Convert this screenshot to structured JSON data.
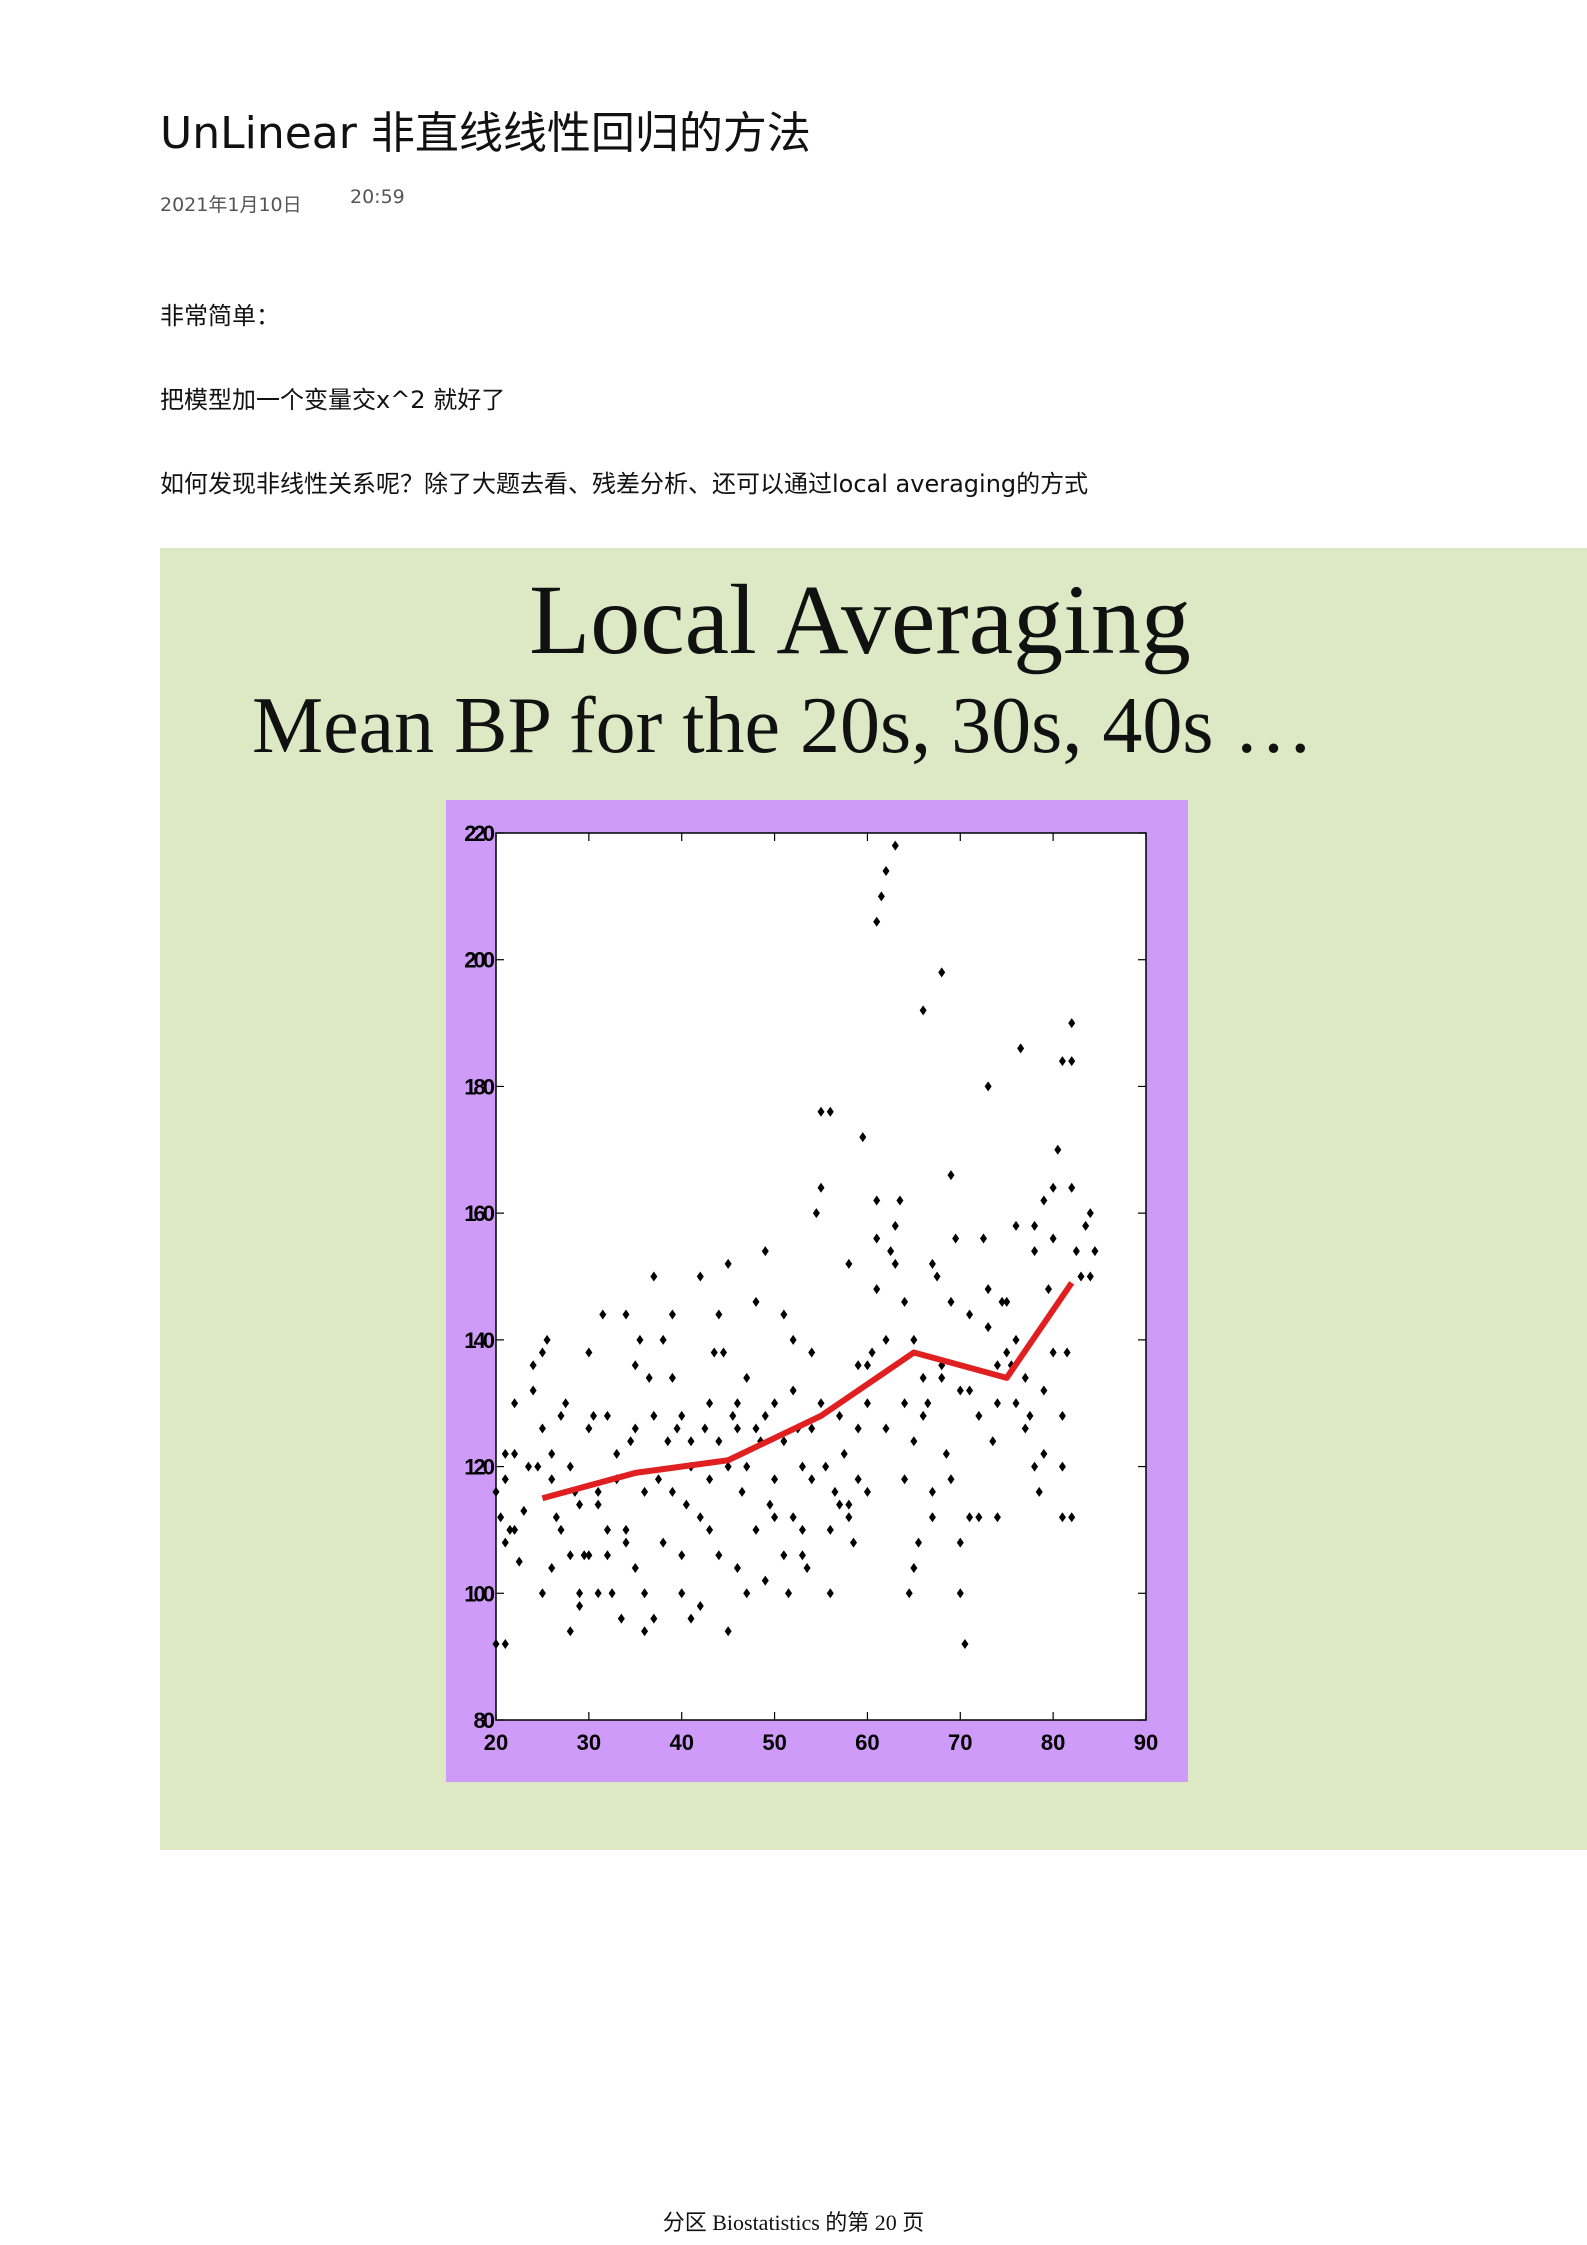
{
  "document": {
    "title": "UnLinear 非直线线性回归的方法",
    "date": "2021年1月10日",
    "time": "20:59",
    "paragraphs": [
      "非常简单：",
      "把模型加一个变量交x^2 就好了",
      "如何发现非线性关系呢？除了大题去看、残差分析、还可以通过local averaging的方式"
    ],
    "footer": "分区 Biostatistics 的第 20 页"
  },
  "colors": {
    "slide_background": "#dde9c4",
    "plot_frame": "#cf9bf9",
    "points": "#000000",
    "average_line": "#e02020"
  },
  "chart_data": {
    "type": "scatter",
    "title": "Local Averaging",
    "subtitle": "Mean BP for the 20s, 30s, 40s …",
    "xlabel": "",
    "ylabel": "",
    "xlim": [
      20,
      90
    ],
    "ylim": [
      80,
      220
    ],
    "xticks": [
      20,
      30,
      40,
      50,
      60,
      70,
      80,
      90
    ],
    "yticks": [
      80,
      100,
      120,
      140,
      160,
      180,
      200,
      220
    ],
    "grid": false,
    "points": [
      [
        20,
        92
      ],
      [
        21,
        92
      ],
      [
        20,
        116
      ],
      [
        20.5,
        112
      ],
      [
        21,
        118
      ],
      [
        21,
        108
      ],
      [
        21.5,
        110
      ],
      [
        22,
        122
      ],
      [
        21,
        122
      ],
      [
        22,
        110
      ],
      [
        22.5,
        105
      ],
      [
        23,
        113
      ],
      [
        22,
        130
      ],
      [
        23.5,
        120
      ],
      [
        24,
        136
      ],
      [
        24,
        132
      ],
      [
        24.5,
        120
      ],
      [
        25,
        138
      ],
      [
        25,
        100
      ],
      [
        25,
        126
      ],
      [
        25.5,
        140
      ],
      [
        26,
        118
      ],
      [
        26,
        104
      ],
      [
        26,
        122
      ],
      [
        26.5,
        112
      ],
      [
        27,
        110
      ],
      [
        27,
        128
      ],
      [
        27.5,
        130
      ],
      [
        28,
        94
      ],
      [
        28,
        120
      ],
      [
        28,
        106
      ],
      [
        28.5,
        116
      ],
      [
        29,
        100
      ],
      [
        29,
        98
      ],
      [
        29,
        114
      ],
      [
        29.5,
        106
      ],
      [
        30,
        138
      ],
      [
        30,
        106
      ],
      [
        30,
        126
      ],
      [
        30.5,
        128
      ],
      [
        31,
        114
      ],
      [
        31,
        116
      ],
      [
        31,
        100
      ],
      [
        31.5,
        144
      ],
      [
        32,
        106
      ],
      [
        32,
        110
      ],
      [
        32,
        128
      ],
      [
        32.5,
        100
      ],
      [
        33,
        118
      ],
      [
        33,
        122
      ],
      [
        33.5,
        96
      ],
      [
        34,
        144
      ],
      [
        34,
        110
      ],
      [
        34,
        108
      ],
      [
        34.5,
        124
      ],
      [
        35,
        126
      ],
      [
        35,
        104
      ],
      [
        35,
        136
      ],
      [
        35.5,
        140
      ],
      [
        36,
        100
      ],
      [
        36,
        116
      ],
      [
        36,
        94
      ],
      [
        36.5,
        134
      ],
      [
        37,
        128
      ],
      [
        37,
        150
      ],
      [
        37,
        96
      ],
      [
        37.5,
        118
      ],
      [
        38,
        140
      ],
      [
        38,
        108
      ],
      [
        38.5,
        124
      ],
      [
        39,
        134
      ],
      [
        39,
        144
      ],
      [
        39,
        116
      ],
      [
        39.5,
        126
      ],
      [
        40,
        128
      ],
      [
        40,
        100
      ],
      [
        40,
        106
      ],
      [
        40.5,
        114
      ],
      [
        41,
        120
      ],
      [
        41,
        96
      ],
      [
        41,
        124
      ],
      [
        42,
        150
      ],
      [
        42,
        112
      ],
      [
        42,
        98
      ],
      [
        42.5,
        126
      ],
      [
        43,
        130
      ],
      [
        43,
        110
      ],
      [
        43,
        118
      ],
      [
        43.5,
        138
      ],
      [
        44,
        106
      ],
      [
        44,
        144
      ],
      [
        44,
        124
      ],
      [
        44.5,
        138
      ],
      [
        45,
        152
      ],
      [
        45,
        94
      ],
      [
        45,
        120
      ],
      [
        45.5,
        128
      ],
      [
        46,
        130
      ],
      [
        46,
        126
      ],
      [
        46,
        104
      ],
      [
        46.5,
        116
      ],
      [
        47,
        120
      ],
      [
        47,
        134
      ],
      [
        47,
        100
      ],
      [
        48,
        146
      ],
      [
        48,
        110
      ],
      [
        48,
        126
      ],
      [
        48.5,
        124
      ],
      [
        49,
        154
      ],
      [
        49,
        128
      ],
      [
        49,
        102
      ],
      [
        49.5,
        114
      ],
      [
        50,
        130
      ],
      [
        50,
        112
      ],
      [
        50,
        118
      ],
      [
        51,
        124
      ],
      [
        51,
        144
      ],
      [
        51,
        106
      ],
      [
        51.5,
        100
      ],
      [
        52,
        140
      ],
      [
        52,
        112
      ],
      [
        52,
        132
      ],
      [
        52.5,
        126
      ],
      [
        53,
        106
      ],
      [
        53,
        110
      ],
      [
        53,
        120
      ],
      [
        53.5,
        104
      ],
      [
        54,
        138
      ],
      [
        54,
        118
      ],
      [
        54,
        126
      ],
      [
        54.5,
        160
      ],
      [
        55,
        164
      ],
      [
        55,
        176
      ],
      [
        55,
        130
      ],
      [
        55.5,
        120
      ],
      [
        56,
        176
      ],
      [
        56,
        110
      ],
      [
        56,
        100
      ],
      [
        56.5,
        116
      ],
      [
        57,
        114
      ],
      [
        57,
        128
      ],
      [
        57.5,
        122
      ],
      [
        58,
        112
      ],
      [
        58,
        114
      ],
      [
        58,
        152
      ],
      [
        58.5,
        108
      ],
      [
        59,
        118
      ],
      [
        59,
        136
      ],
      [
        59,
        126
      ],
      [
        59.5,
        172
      ],
      [
        60,
        116
      ],
      [
        60,
        136
      ],
      [
        60,
        130
      ],
      [
        60.5,
        138
      ],
      [
        61,
        148
      ],
      [
        61,
        156
      ],
      [
        61,
        162
      ],
      [
        61,
        206
      ],
      [
        61.5,
        210
      ],
      [
        62,
        214
      ],
      [
        62,
        140
      ],
      [
        62,
        126
      ],
      [
        62.5,
        154
      ],
      [
        63,
        218
      ],
      [
        63,
        152
      ],
      [
        63,
        158
      ],
      [
        63.5,
        162
      ],
      [
        64,
        118
      ],
      [
        64,
        130
      ],
      [
        64,
        146
      ],
      [
        64.5,
        100
      ],
      [
        65,
        104
      ],
      [
        65,
        124
      ],
      [
        65,
        140
      ],
      [
        65.5,
        108
      ],
      [
        66,
        134
      ],
      [
        66,
        192
      ],
      [
        66,
        128
      ],
      [
        66.5,
        130
      ],
      [
        67,
        152
      ],
      [
        67,
        116
      ],
      [
        67,
        112
      ],
      [
        67.5,
        150
      ],
      [
        68,
        134
      ],
      [
        68,
        198
      ],
      [
        68,
        136
      ],
      [
        68.5,
        122
      ],
      [
        69,
        166
      ],
      [
        69,
        146
      ],
      [
        69,
        118
      ],
      [
        69.5,
        156
      ],
      [
        70,
        100
      ],
      [
        70,
        108
      ],
      [
        70,
        132
      ],
      [
        70.5,
        92
      ],
      [
        71,
        112
      ],
      [
        71,
        132
      ],
      [
        71,
        144
      ],
      [
        72,
        112
      ],
      [
        72,
        128
      ],
      [
        72.5,
        156
      ],
      [
        73,
        142
      ],
      [
        73,
        180
      ],
      [
        73,
        148
      ],
      [
        73.5,
        124
      ],
      [
        74,
        112
      ],
      [
        74,
        136
      ],
      [
        74,
        130
      ],
      [
        74.5,
        146
      ],
      [
        75,
        138
      ],
      [
        75,
        146
      ],
      [
        75.5,
        136
      ],
      [
        76,
        140
      ],
      [
        76,
        158
      ],
      [
        76,
        130
      ],
      [
        76.5,
        186
      ],
      [
        77,
        126
      ],
      [
        77,
        134
      ],
      [
        77.5,
        128
      ],
      [
        78,
        154
      ],
      [
        78,
        158
      ],
      [
        78,
        120
      ],
      [
        78.5,
        116
      ],
      [
        79,
        122
      ],
      [
        79,
        132
      ],
      [
        79,
        162
      ],
      [
        79.5,
        148
      ],
      [
        80,
        138
      ],
      [
        80,
        156
      ],
      [
        80,
        164
      ],
      [
        80.5,
        170
      ],
      [
        81,
        112
      ],
      [
        81,
        120
      ],
      [
        81,
        128
      ],
      [
        81,
        184
      ],
      [
        81.5,
        138
      ],
      [
        82,
        112
      ],
      [
        82,
        184
      ],
      [
        82,
        190
      ],
      [
        82,
        164
      ],
      [
        82.5,
        154
      ],
      [
        83,
        150
      ],
      [
        83.5,
        158
      ],
      [
        84,
        160
      ],
      [
        84,
        150
      ],
      [
        84.5,
        154
      ]
    ],
    "series": [
      {
        "type": "line",
        "x": [
          25,
          35,
          45,
          55,
          65,
          75,
          82
        ],
        "y": [
          115,
          119,
          121,
          128,
          138,
          134,
          149
        ]
      }
    ]
  }
}
